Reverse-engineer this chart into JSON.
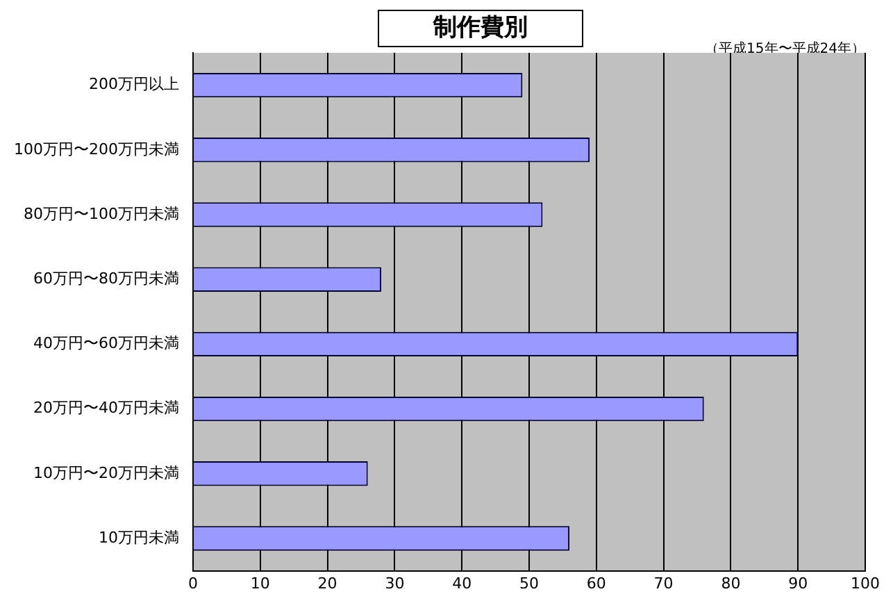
{
  "chart_data": {
    "type": "bar",
    "orientation": "horizontal",
    "title": "制作費別",
    "annotations": [
      "（平成15年〜平成24年）"
    ],
    "categories": [
      "200万円以上",
      "100万円〜200万円未満",
      "80万円〜100万円未満",
      "60万円〜80万円未満",
      "40万円〜60万円未満",
      "20万円〜40万円未満",
      "10万円〜20万円未満",
      "10万円未満"
    ],
    "values": [
      49,
      59,
      52,
      28,
      90,
      76,
      26,
      56
    ],
    "color": "#9999ff",
    "xlim": [
      0,
      100
    ],
    "xticks": [
      0,
      10,
      20,
      30,
      40,
      50,
      60,
      70,
      80,
      90,
      100
    ],
    "grid": "x",
    "legend": false
  }
}
